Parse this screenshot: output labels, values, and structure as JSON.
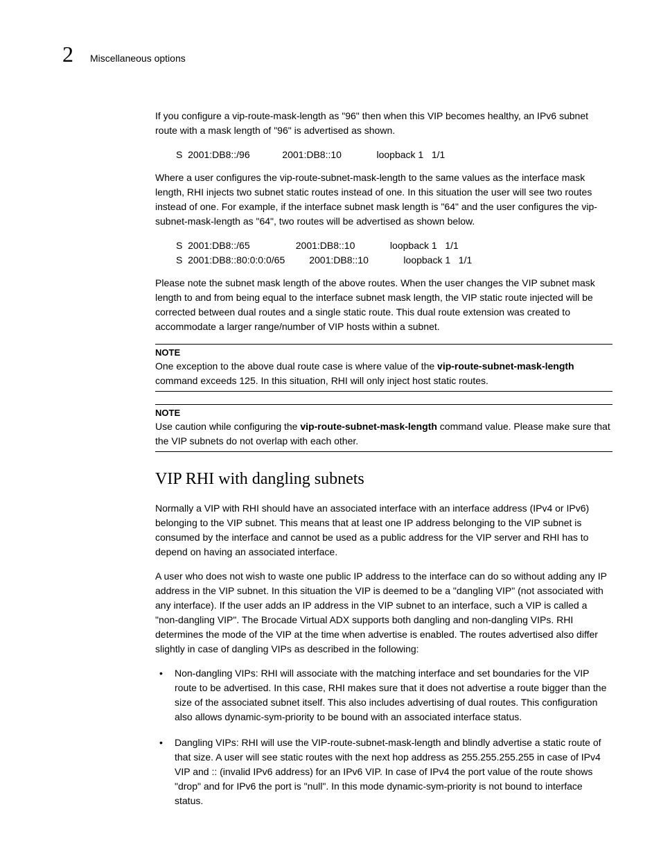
{
  "header": {
    "chapter_number": "2",
    "chapter_title": "Miscellaneous options"
  },
  "p1": "If you configure a vip-route-mask-length as \"96\" then when this VIP becomes healthy, an IPv6 subnet route with a mask length of \"96\" is advertised as shown.",
  "code1": "S  2001:DB8::/96            2001:DB8::10             loopback 1   1/1",
  "p2": "Where a user configures the vip-route-subnet-mask-length to the same values as the interface mask length, RHI injects two subnet static routes instead of one. In this situation the user will see two routes instead of one. For example, if the interface subnet mask length is \"64\" and the user configures the vip-subnet-mask-length as \"64\", two routes will be advertised as shown below.",
  "code2": "S  2001:DB8::/65                 2001:DB8::10             loopback 1   1/1\nS  2001:DB8::80:0:0:0/65         2001:DB8::10             loopback 1   1/1",
  "p3": "Please note the subnet mask length of the above routes. When the user changes the VIP subnet mask length to and from being equal to the interface subnet mask length, the VIP static route injected will be corrected between dual routes and a single static route. This dual route extension was created to accommodate a larger range/number of VIP hosts within a subnet.",
  "note1": {
    "label": "NOTE",
    "pre": "One exception to the above dual route case is where value of the ",
    "bold": "vip-route-subnet-mask-length",
    "post": " command exceeds 125. In this situation, RHI will only inject host static routes."
  },
  "note2": {
    "label": "NOTE",
    "pre": "Use caution while configuring the ",
    "bold": "vip-route-subnet-mask-length",
    "post": " command value. Please make sure that the VIP subnets do not overlap with each other."
  },
  "h2": "VIP RHI with dangling subnets",
  "p4": "Normally a VIP with RHI should have an associated interface with an interface address (IPv4 or IPv6) belonging to the VIP subnet. This means that at least one IP address belonging to the VIP subnet is consumed by the interface and cannot be used as a public address for the VIP server and RHI has to depend on having an associated interface.",
  "p5": "A user who does not wish to waste one public IP address to the interface can do so without adding any IP address in the VIP subnet. In this situation the VIP is deemed to be a \"dangling VIP\" (not associated with any interface). If the user adds an IP address in the VIP subnet to an interface, such a VIP is called a \"non-dangling VIP\". The Brocade Virtual ADX supports both dangling and non-dangling VIPs. RHI determines the mode of the VIP at the time when advertise is enabled. The routes advertised also differ slightly in case of dangling VIPs as described in the following:",
  "bullet1": "Non-dangling VIPs: RHI will associate with the matching interface and set boundaries for the VIP route to be advertised. In this case, RHI makes sure that it does not advertise a route bigger than the size of the associated subnet itself. This also includes advertising of dual routes. This configuration also allows dynamic-sym-priority to be bound with an associated interface status.",
  "bullet2": "Dangling VIPs: RHI will use the VIP-route-subnet-mask-length and blindly advertise a static route of that size. A user will see static routes with the next hop address as 255.255.255.255 in case of IPv4 VIP and :: (invalid IPv6 address) for an IPv6 VIP. In case of IPv4 the port value of the route shows \"drop\" and for IPv6 the port is \"null\". In this mode dynamic-sym-priority is not bound to interface status."
}
